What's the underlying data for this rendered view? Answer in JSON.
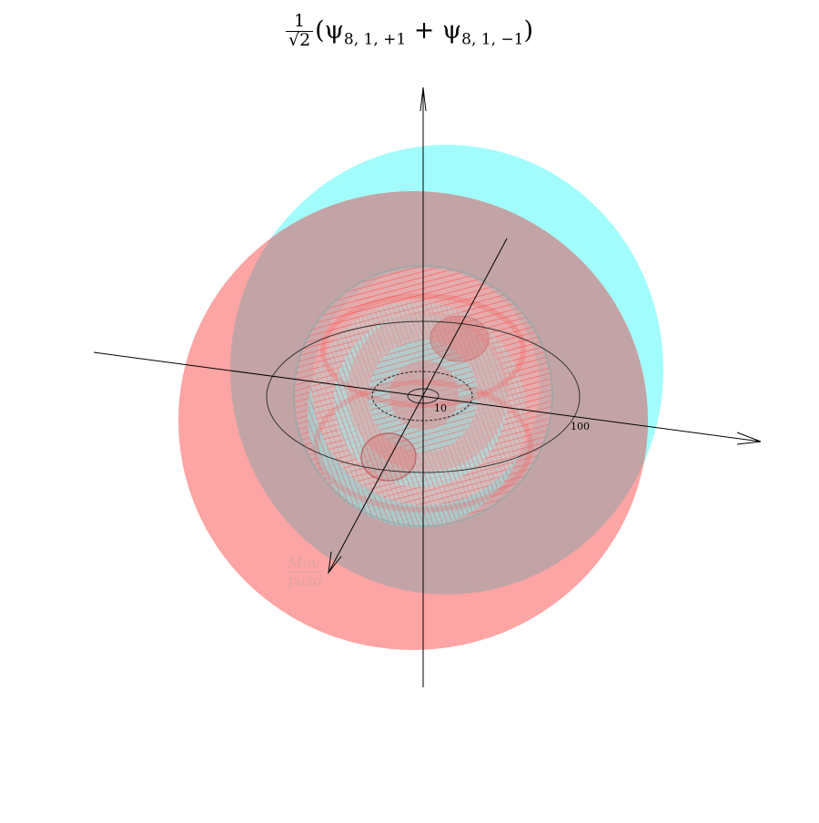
{
  "title": {
    "coefficient_numerator": "1",
    "coefficient_denominator": "√2",
    "open": "(ψ",
    "sub1": "8, 1, +1",
    "plus": " + ψ",
    "sub2": "8, 1, −1",
    "close": ")"
  },
  "scale_labels": {
    "inner": "10",
    "outer": "100"
  },
  "watermark": {
    "line1": "Mov",
    "line2": "pasd"
  },
  "colors": {
    "positive_lobe": "#a3fcfc",
    "negative_lobe": "#fda4a4",
    "overlap": "#c3a4a6",
    "inner_detail": "#ff3a3a",
    "axis": "#000000"
  }
}
